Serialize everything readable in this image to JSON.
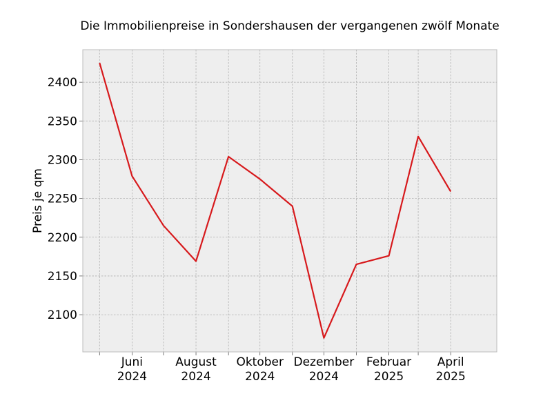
{
  "chart_data": {
    "type": "line",
    "title": "Die Immobilienpreise in Sondershausen der vergangenen zwölf Monate",
    "xlabel": "",
    "ylabel": "Preis je qm",
    "x": [
      "2024-05",
      "2024-06",
      "2024-07",
      "2024-08",
      "2024-09",
      "2024-10",
      "2024-11",
      "2024-12",
      "2025-01",
      "2025-02",
      "2025-03",
      "2025-04"
    ],
    "series": [
      {
        "values": [
          2425,
          2279,
          2215,
          2169,
          2304,
          2275,
          2240,
          2070,
          2165,
          2176,
          2330,
          2259
        ]
      }
    ],
    "x_tick_labels": [
      {
        "x": "2024-06",
        "line1": "Juni",
        "line2": "2024"
      },
      {
        "x": "2024-08",
        "line1": "August",
        "line2": "2024"
      },
      {
        "x": "2024-10",
        "line1": "Oktober",
        "line2": "2024"
      },
      {
        "x": "2024-12",
        "line1": "Dezember",
        "line2": "2024"
      },
      {
        "x": "2025-02",
        "line1": "Februar",
        "line2": "2025"
      },
      {
        "x": "2025-04",
        "line1": "April",
        "line2": "2025"
      }
    ],
    "y_ticks": [
      2100,
      2150,
      2200,
      2250,
      2300,
      2350,
      2400
    ],
    "ylim": [
      2052,
      2442
    ],
    "xlim": [
      "2024-04-15",
      "2025-05-15"
    ],
    "grid": true,
    "colors": {
      "line": "#d7191c",
      "plot_background": "#eeeeee",
      "grid": "#b0b0b0",
      "spine": "#bcbcbc"
    }
  }
}
